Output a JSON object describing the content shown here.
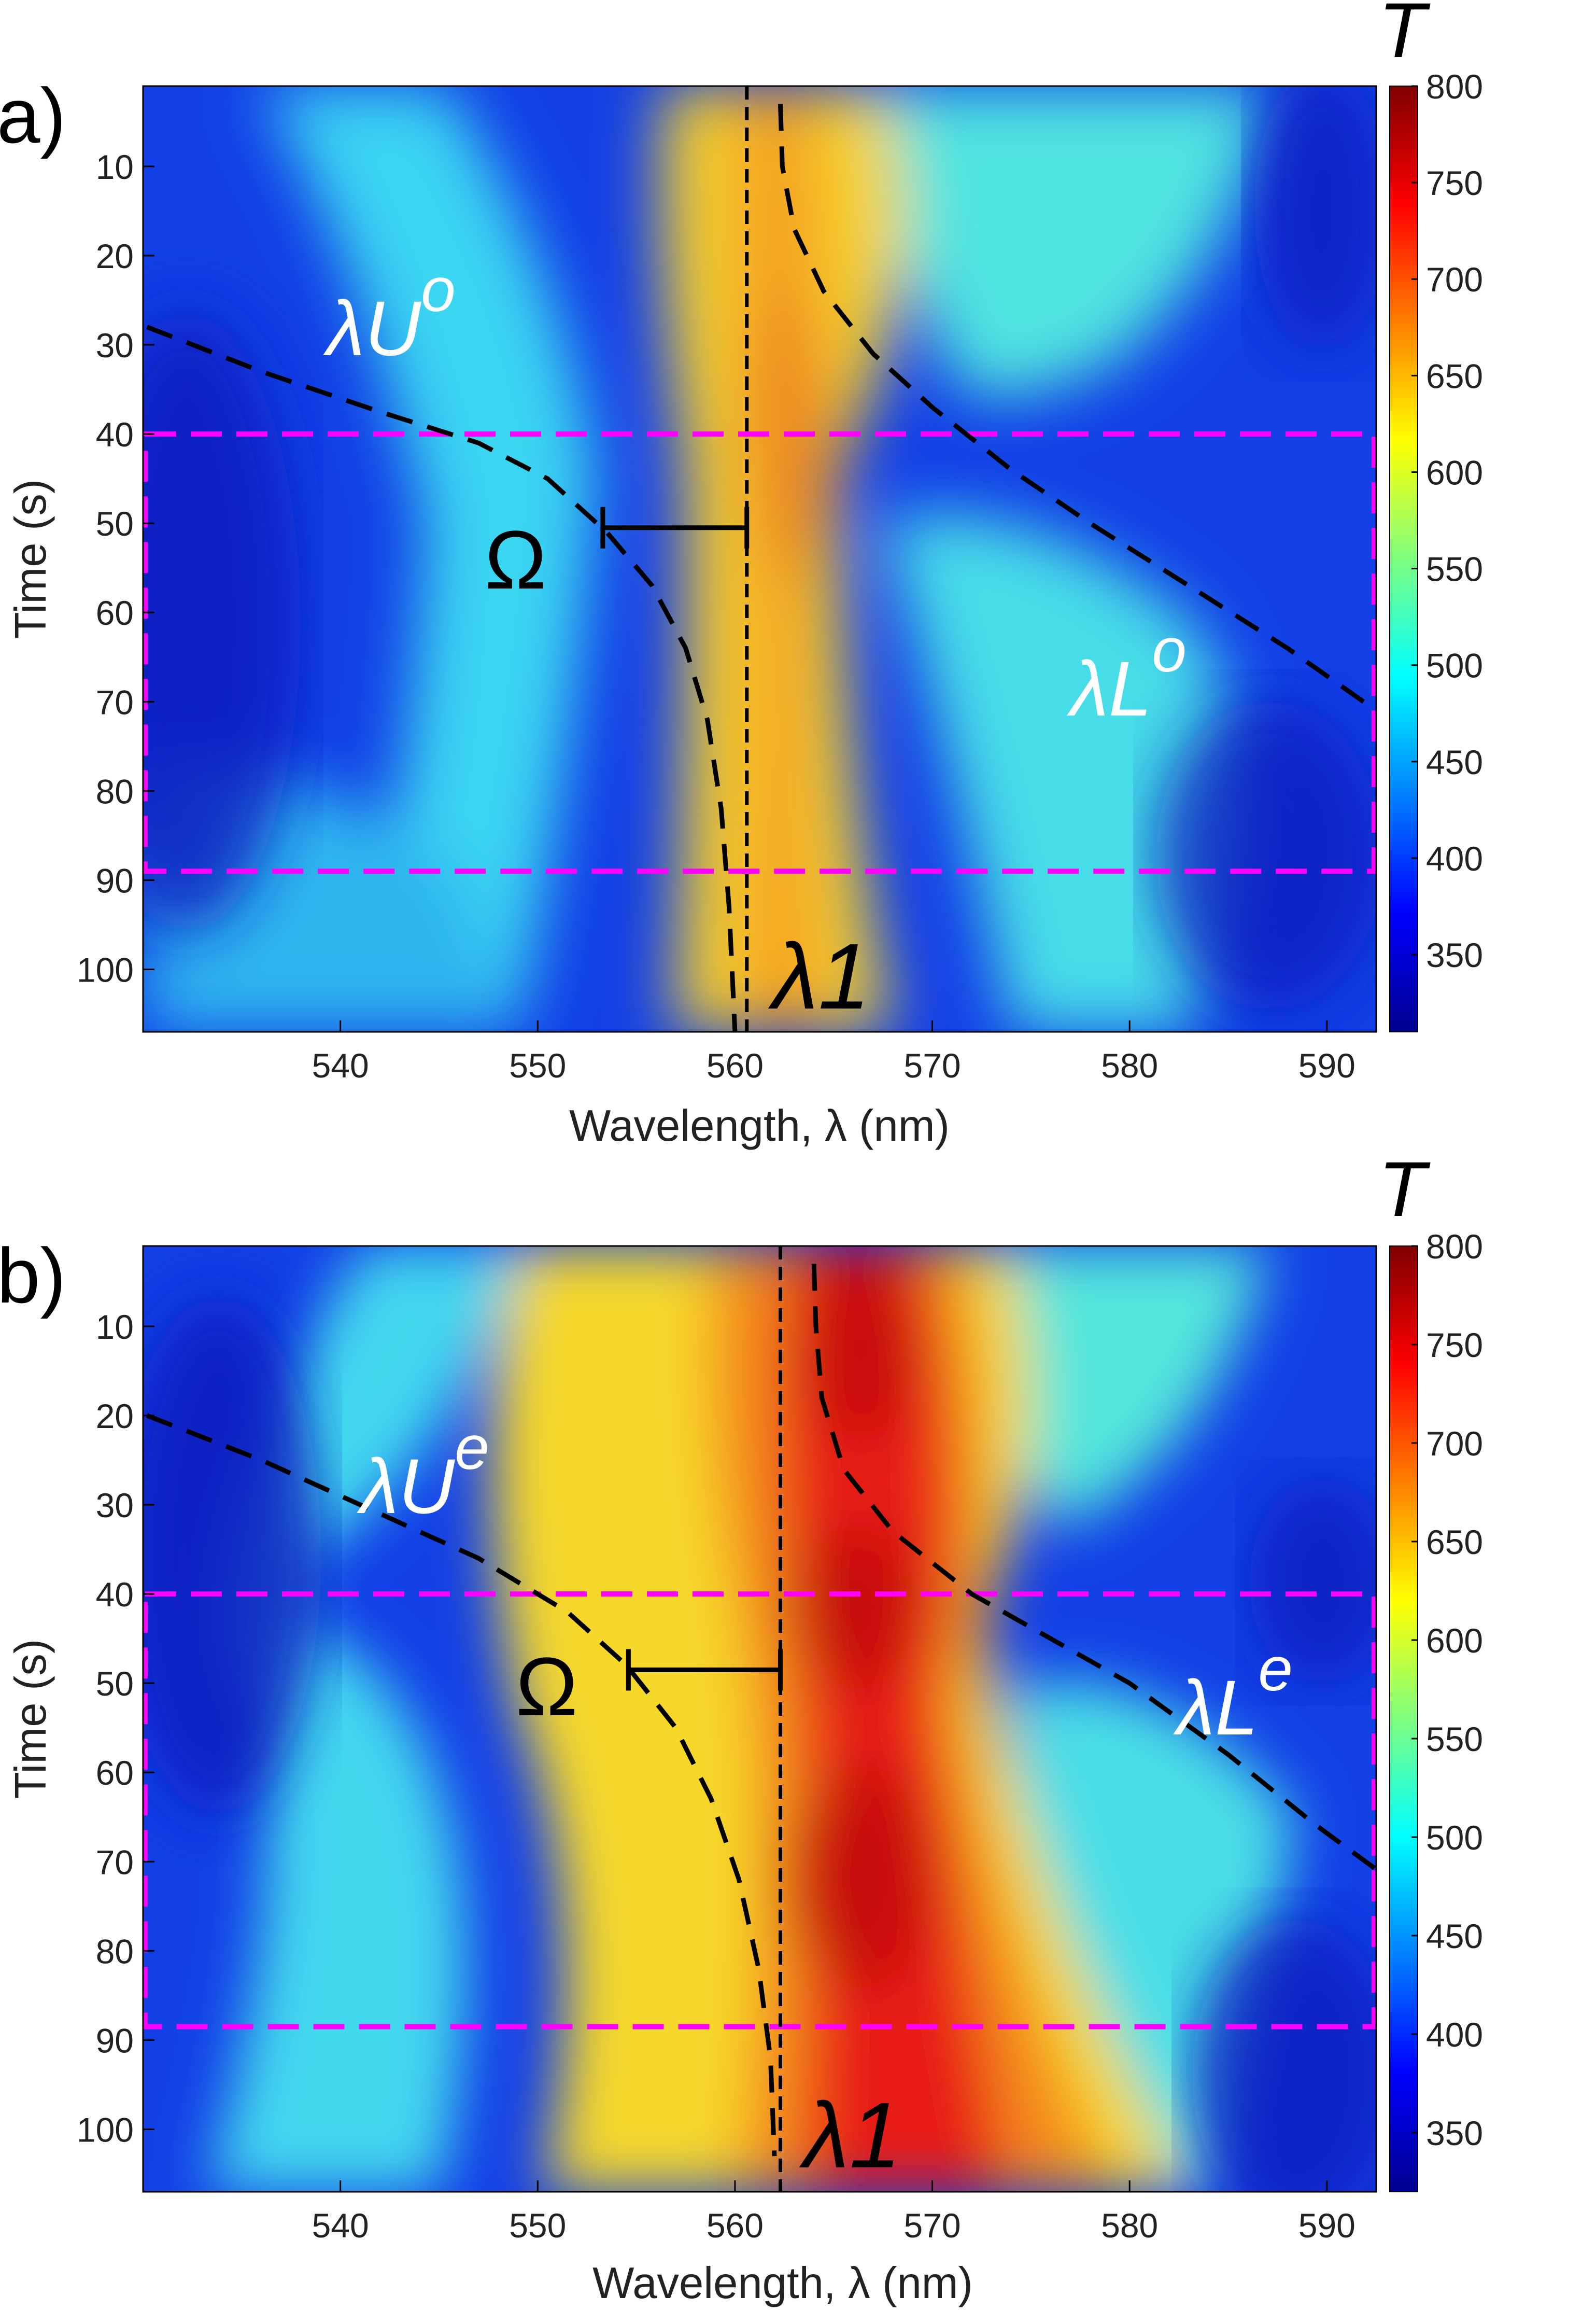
{
  "chart_data": [
    {
      "type": "heatmap",
      "panel_label": "a)",
      "xlabel": "Wavelength, λ (nm)",
      "ylabel": "Time (s)",
      "xlim": [
        530,
        592.5
      ],
      "ylim": [
        1,
        107
      ],
      "x_ticks": [
        540,
        550,
        560,
        570,
        580,
        590
      ],
      "y_ticks": [
        10,
        20,
        30,
        40,
        50,
        60,
        70,
        80,
        90,
        100
      ],
      "colorbar": {
        "title": "T",
        "range": [
          310,
          800
        ],
        "ticks": [
          350,
          400,
          450,
          500,
          550,
          600,
          650,
          700,
          750,
          800
        ]
      },
      "highlight_box": {
        "time_range": [
          40,
          89
        ],
        "color": "#ff00ff"
      },
      "curves": {
        "upper_branch": [
          [
            530.2,
            28
          ],
          [
            536,
            33
          ],
          [
            542,
            37.5
          ],
          [
            547,
            41
          ],
          [
            550.5,
            45
          ],
          [
            553.5,
            51
          ],
          [
            555.8,
            57
          ],
          [
            557.5,
            64
          ],
          [
            558.6,
            72
          ],
          [
            559.3,
            82
          ],
          [
            559.7,
            93
          ],
          [
            560,
            107
          ]
        ],
        "lower_branch": [
          [
            562.3,
            3
          ],
          [
            562.4,
            10
          ],
          [
            563,
            17
          ],
          [
            564.5,
            24
          ],
          [
            567,
            31
          ],
          [
            570,
            37
          ],
          [
            574,
            44
          ],
          [
            578,
            50
          ],
          [
            583,
            57
          ],
          [
            588,
            64
          ],
          [
            592.5,
            71
          ]
        ],
        "resonance_line": [
          [
            560.6,
            1
          ],
          [
            560.6,
            107
          ]
        ],
        "rabi_splitting_bar": [
          [
            553.3,
            50.5
          ],
          [
            560.6,
            50.5
          ]
        ]
      },
      "annotations": {
        "upper": "λU",
        "upper_sup": "o",
        "lower": "λL",
        "lower_sup": "o",
        "resonance": "λ1",
        "splitting": "Ω"
      }
    },
    {
      "type": "heatmap",
      "panel_label": "b)",
      "xlabel": "Wavelength, λ (nm)",
      "ylabel": "Time (s)",
      "xlim": [
        530,
        592.5
      ],
      "ylim": [
        1,
        107
      ],
      "x_ticks": [
        540,
        550,
        560,
        570,
        580,
        590
      ],
      "y_ticks": [
        10,
        20,
        30,
        40,
        50,
        60,
        70,
        80,
        90,
        100
      ],
      "colorbar": {
        "title": "T",
        "range": [
          320,
          800
        ],
        "ticks": [
          350,
          400,
          450,
          500,
          550,
          600,
          650,
          700,
          750,
          800
        ]
      },
      "highlight_box": {
        "time_range": [
          40,
          88.5
        ],
        "color": "#ff00ff"
      },
      "curves": {
        "upper_branch": [
          [
            530.2,
            20
          ],
          [
            536,
            25
          ],
          [
            542,
            31
          ],
          [
            547,
            36
          ],
          [
            551.5,
            42
          ],
          [
            554.5,
            48
          ],
          [
            557,
            55
          ],
          [
            558.8,
            63
          ],
          [
            560.2,
            72
          ],
          [
            561.2,
            82
          ],
          [
            561.8,
            92
          ],
          [
            562,
            103
          ]
        ],
        "lower_branch": [
          [
            564,
            3
          ],
          [
            564.1,
            10
          ],
          [
            564.4,
            18
          ],
          [
            565.5,
            26
          ],
          [
            568,
            33
          ],
          [
            572,
            40
          ],
          [
            576,
            45
          ],
          [
            580,
            50
          ],
          [
            585,
            58
          ],
          [
            589.5,
            66
          ],
          [
            593.2,
            72
          ]
        ],
        "resonance_line": [
          [
            562.3,
            1
          ],
          [
            562.3,
            107
          ]
        ],
        "rabi_splitting_bar": [
          [
            554.6,
            48.5
          ],
          [
            562.3,
            48.5
          ]
        ]
      },
      "annotations": {
        "upper": "λU",
        "upper_sup": "e",
        "lower": "λL",
        "lower_sup": "e",
        "resonance": "λ1",
        "splitting": "Ω"
      }
    }
  ]
}
